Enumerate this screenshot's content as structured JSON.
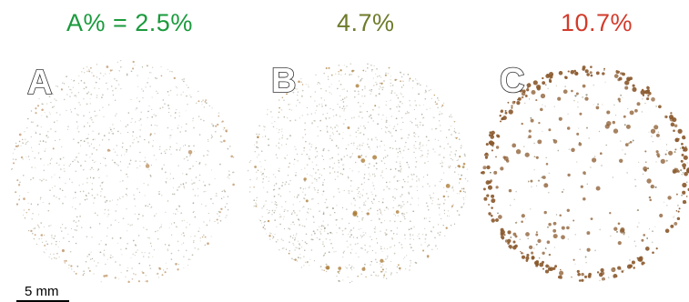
{
  "panels": [
    {
      "letter": "A",
      "percent_label": "A% = 2.5%",
      "color": "#1a9a3c",
      "particle_color": "#b98b5a",
      "density": 0.35
    },
    {
      "letter": "B",
      "percent_label": "4.7%",
      "color": "#6f7a2a",
      "particle_color": "#a8772f",
      "density": 0.55
    },
    {
      "letter": "C",
      "percent_label": "10.7%",
      "color": "#d23b2b",
      "particle_color": "#8a5a2e",
      "density": 1.0
    }
  ],
  "scale_bar": {
    "label": "5 mm"
  }
}
